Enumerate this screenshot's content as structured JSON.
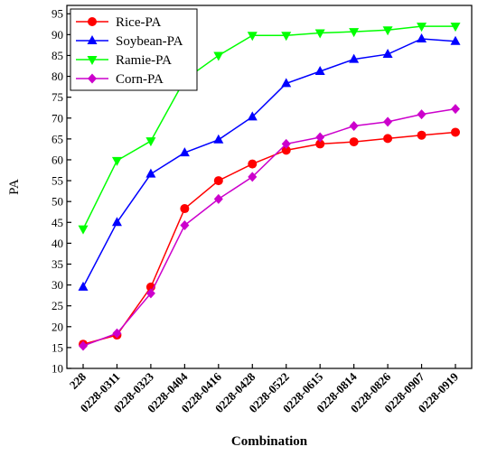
{
  "chart_data": {
    "type": "line",
    "title": "",
    "xlabel": "Combination",
    "ylabel": "PA",
    "categories": [
      "228",
      "0228-0311",
      "0228-0323",
      "0228-0404",
      "0228-0416",
      "0228-0428",
      "0228-0522",
      "0228-0615",
      "0228-0814",
      "0228-0826",
      "0228-0907",
      "0228-0919"
    ],
    "ylim": [
      10,
      97
    ],
    "yticks": [
      10,
      15,
      20,
      25,
      30,
      35,
      40,
      45,
      50,
      55,
      60,
      65,
      70,
      75,
      80,
      85,
      90,
      95
    ],
    "grid": false,
    "legend_position": "top-left",
    "series": [
      {
        "name": "Rice-PA",
        "color": "#ff0000",
        "marker": "circle",
        "values": [
          15.8,
          18.0,
          29.5,
          48.3,
          55.0,
          59.0,
          62.3,
          63.8,
          64.3,
          65.1,
          65.9,
          66.6
        ]
      },
      {
        "name": "Soybean-PA",
        "color": "#0000ff",
        "marker": "triangle-up",
        "values": [
          29.5,
          45.0,
          56.6,
          61.7,
          64.8,
          70.3,
          78.3,
          81.2,
          84.1,
          85.3,
          89.0,
          88.4
        ]
      },
      {
        "name": "Ramie-PA",
        "color": "#00ff00",
        "marker": "triangle-down",
        "values": [
          43.4,
          59.8,
          64.5,
          79.2,
          85.0,
          89.8,
          89.8,
          90.4,
          90.7,
          91.1,
          92.0,
          92.0
        ]
      },
      {
        "name": "Corn-PA",
        "color": "#cc00cc",
        "marker": "diamond",
        "values": [
          15.4,
          18.4,
          28.0,
          44.3,
          50.6,
          55.9,
          63.8,
          65.4,
          68.1,
          69.1,
          70.9,
          72.2
        ]
      }
    ]
  }
}
